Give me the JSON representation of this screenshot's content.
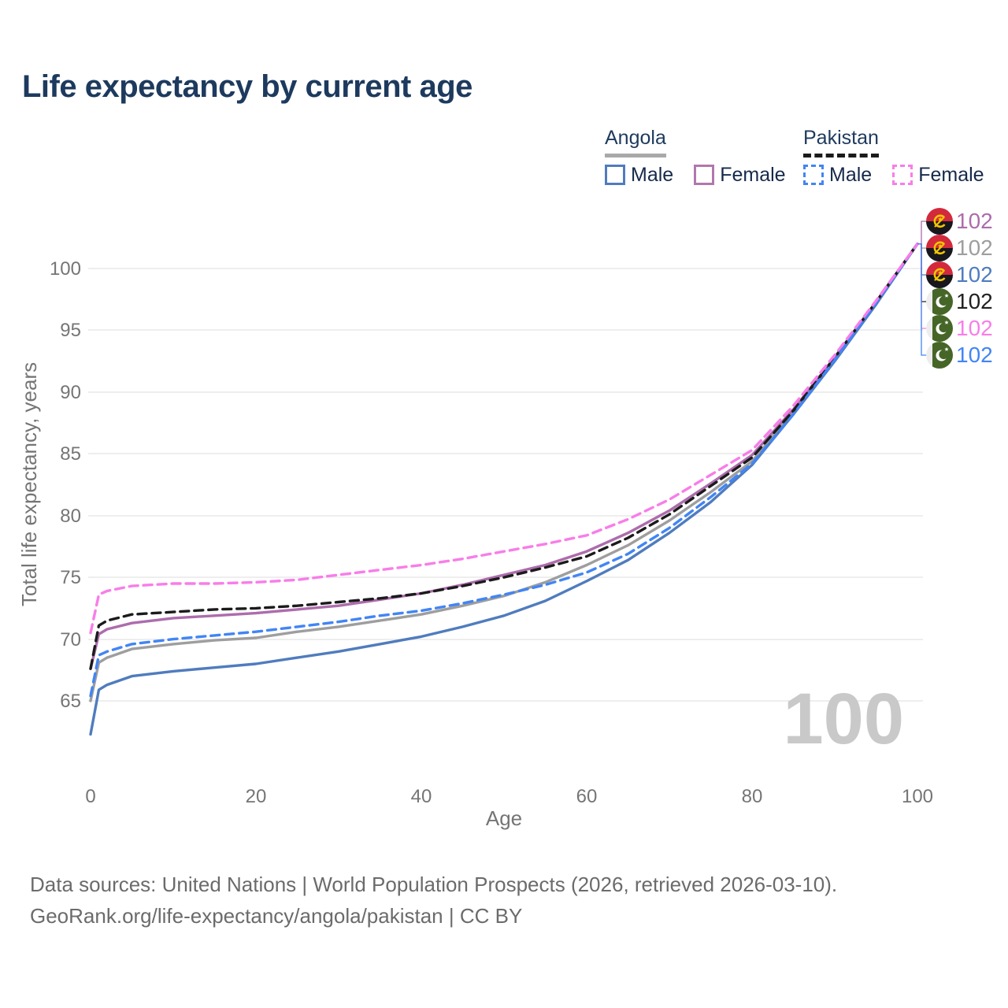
{
  "title": "Life expectancy by current age",
  "legend": {
    "groups": [
      {
        "id": "angola",
        "label": "Angola",
        "underline_style": "solid",
        "underline_color": "#a9a9a9",
        "items": [
          {
            "id": "angola_male",
            "label": "Male",
            "color": "#4f7cbe",
            "dashed": false
          },
          {
            "id": "angola_female",
            "label": "Female",
            "color": "#b178ab",
            "dashed": false
          }
        ]
      },
      {
        "id": "pakistan",
        "label": "Pakistan",
        "underline_style": "dashed",
        "underline_color": "#1b1b1b",
        "items": [
          {
            "id": "pakistan_male",
            "label": "Male",
            "color": "#4285f4",
            "dashed": true
          },
          {
            "id": "pakistan_female",
            "label": "Female",
            "color": "#f87de9",
            "dashed": true
          }
        ]
      }
    ]
  },
  "chart_data": {
    "type": "line",
    "title": "Life expectancy by current age",
    "xlabel": "Age",
    "ylabel": "Total life expectancy, years",
    "xlim": [
      0,
      100
    ],
    "ylim": [
      62,
      103
    ],
    "xticks": [
      "0",
      "20",
      "40",
      "60",
      "80",
      "100"
    ],
    "yticks": [
      "100",
      "95",
      "90",
      "85",
      "80",
      "75",
      "70",
      "65"
    ],
    "grid": "horizontal-only",
    "legend_position": "top-right",
    "age_counter": "100",
    "x": [
      0,
      1,
      2,
      5,
      10,
      15,
      20,
      25,
      30,
      35,
      40,
      45,
      50,
      55,
      60,
      65,
      70,
      75,
      80,
      85,
      90,
      95,
      100
    ],
    "series": [
      {
        "name": "angola_both",
        "country": "Angola",
        "sex": "Both",
        "color": "#9e9e9e",
        "dash": false,
        "values": [
          65.0,
          68.1,
          68.5,
          69.2,
          69.6,
          69.9,
          70.1,
          70.6,
          71.0,
          71.5,
          72.0,
          72.7,
          73.5,
          74.6,
          76.0,
          77.6,
          79.6,
          81.9,
          84.4,
          88.4,
          92.7,
          97.2,
          102
        ]
      },
      {
        "name": "angola_male",
        "country": "Angola",
        "sex": "Male",
        "color": "#4f7cbe",
        "dash": false,
        "values": [
          62.3,
          65.9,
          66.3,
          67.0,
          67.4,
          67.7,
          68.0,
          68.5,
          69.0,
          69.6,
          70.2,
          71.0,
          71.9,
          73.1,
          74.7,
          76.4,
          78.6,
          81.1,
          84.1,
          88.2,
          92.5,
          97.1,
          102
        ]
      },
      {
        "name": "angola_female",
        "country": "Angola",
        "sex": "Female",
        "color": "#ad6cac",
        "dash": false,
        "values": [
          67.6,
          70.4,
          70.8,
          71.3,
          71.7,
          71.9,
          72.1,
          72.4,
          72.7,
          73.2,
          73.7,
          74.4,
          75.2,
          76.0,
          77.1,
          78.6,
          80.4,
          82.6,
          84.9,
          88.6,
          92.8,
          97.3,
          102
        ]
      },
      {
        "name": "pakistan_both",
        "country": "Pakistan",
        "sex": "Both",
        "color": "#1b1b1b",
        "dash": true,
        "values": [
          67.6,
          71.1,
          71.5,
          72.0,
          72.2,
          72.4,
          72.5,
          72.7,
          73.0,
          73.3,
          73.7,
          74.3,
          75.0,
          75.8,
          76.7,
          78.2,
          80.1,
          82.4,
          84.7,
          88.5,
          92.8,
          97.3,
          102
        ]
      },
      {
        "name": "pakistan_male",
        "country": "Pakistan",
        "sex": "Male",
        "color": "#4285f4",
        "dash": true,
        "values": [
          65.4,
          68.7,
          69.0,
          69.6,
          70.0,
          70.3,
          70.6,
          71.0,
          71.4,
          71.9,
          72.3,
          72.9,
          73.6,
          74.4,
          75.4,
          76.9,
          79.0,
          81.5,
          84.2,
          88.2,
          92.6,
          97.2,
          102
        ]
      },
      {
        "name": "pakistan_female",
        "country": "Pakistan",
        "sex": "Female",
        "color": "#f87de9",
        "dash": true,
        "values": [
          70.5,
          73.6,
          73.9,
          74.3,
          74.5,
          74.5,
          74.6,
          74.8,
          75.2,
          75.6,
          76.0,
          76.5,
          77.1,
          77.7,
          78.4,
          79.7,
          81.3,
          83.3,
          85.3,
          88.9,
          93.0,
          97.4,
          102
        ]
      }
    ]
  },
  "end_labels": [
    {
      "series": "angola_female",
      "country": "angola",
      "value": "102",
      "color": "#ad6cac"
    },
    {
      "series": "angola_both",
      "country": "angola",
      "value": "102",
      "color": "#9e9e9e"
    },
    {
      "series": "angola_male",
      "country": "angola",
      "value": "102",
      "color": "#4f7cbe"
    },
    {
      "series": "pakistan_both",
      "country": "pakistan",
      "value": "102",
      "color": "#212121"
    },
    {
      "series": "pakistan_female",
      "country": "pakistan",
      "value": "102",
      "color": "#f87de9"
    },
    {
      "series": "pakistan_male",
      "country": "pakistan",
      "value": "102",
      "color": "#4285f4"
    }
  ],
  "flag_colors": {
    "angola_red": "#d3293c",
    "angola_black": "#17171d",
    "angola_yellow": "#f2c500",
    "pakistan_green": "#466628",
    "pakistan_hoist": "#ededed",
    "pakistan_white": "#ffffff"
  },
  "footer": {
    "line1": "Data sources: United Nations | World Population Prospects (2026, retrieved 2026-03-10).",
    "line2": "GeoRank.org/life-expectancy/angola/pakistan | CC BY"
  }
}
